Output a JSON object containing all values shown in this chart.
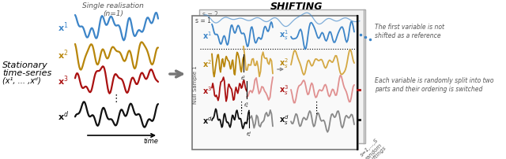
{
  "title_left": "Single realisation\n(n=1)",
  "title_center": "SHIFTING",
  "label_stationary_line1": "Stationary",
  "label_stationary_line2": "time-series",
  "label_stationary_line3": "(x¹, ... ,xᵈ)",
  "colors": {
    "blue": "#3d85c8",
    "gold": "#b8860b",
    "red": "#aa1111",
    "black": "#111111",
    "pink": "#e09090",
    "gray": "#888888",
    "lightblue": "#6aaee0",
    "lightgold": "#d4a843"
  },
  "arrow_color": "#888888",
  "background": "#ffffff",
  "note1": "The first variable is not\nshifted as a reference",
  "note2": "Each variable is randomly split into two\nparts and their ordering is switched",
  "note3": "s=1,...,S\nrandom\nshiftings",
  "null_sample_label": "Null Sample 1"
}
